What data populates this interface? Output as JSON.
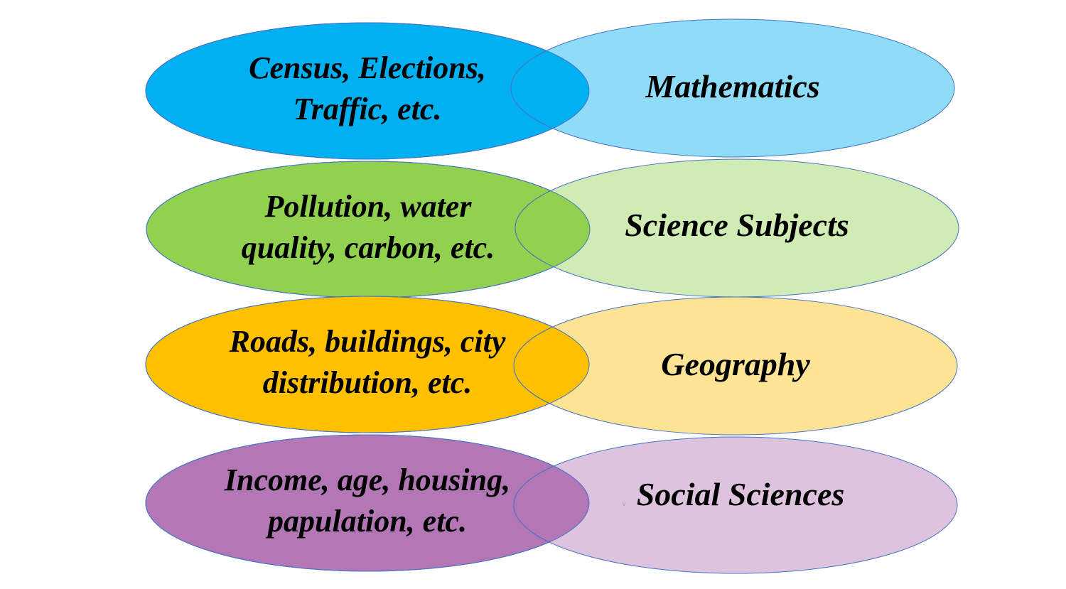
{
  "rows": [
    {
      "left": {
        "lines": [
          "Census, Elections,",
          "Traffic, etc."
        ],
        "color": "#00B0F0"
      },
      "right": {
        "text": "Mathematics",
        "color": "#8EDCF8"
      }
    },
    {
      "left": {
        "lines": [
          "Pollution, water",
          "quality, carbon, etc."
        ],
        "color": "#92D050"
      },
      "right": {
        "text": "Science Subjects",
        "color": "#D1EBB4"
      }
    },
    {
      "left": {
        "lines": [
          "Roads, buildings, city",
          "distribution, etc."
        ],
        "color": "#FFC000"
      },
      "right": {
        "text": "Geography",
        "color": "#FDE394"
      }
    },
    {
      "left": {
        "lines": [
          "Income, age, housing,",
          "papulation, etc."
        ],
        "color": "#B277B4"
      },
      "right": {
        "text": "Social Sciences",
        "color": "#DEC3DF"
      }
    }
  ],
  "stray_mark": "v",
  "outline_color": "#4472C4"
}
